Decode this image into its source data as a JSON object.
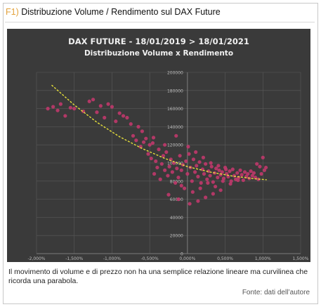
{
  "figure": {
    "label": "F1)",
    "title": "Distribuzione Volume / Rendimento sul DAX Future",
    "caption": "Il movimento di volume e di prezzo non ha una semplice relazione lineare ma curvilinea che ricorda una parabola.",
    "source": "Fonte: dati dell’autore"
  },
  "colors": {
    "plot_bg": "#3a3a3a",
    "point": "#c0396b",
    "trend": "#e8e13a",
    "grid": "#595959",
    "tick_text": "#bdbdbd",
    "title_text": "#f0f0f0",
    "label_accent": "#e2a13a"
  },
  "chart_data": {
    "type": "scatter",
    "title": "DAX FUTURE - 18/01/2019 > 18/01/2021",
    "subtitle": "Distribuzione Volume x Rendimento",
    "xlabel": "",
    "ylabel": "",
    "xlim": [
      -0.02,
      0.015
    ],
    "ylim": [
      0,
      200000
    ],
    "grid": true,
    "x_ticks": [
      -0.02,
      -0.015,
      -0.01,
      -0.005,
      0,
      0.005,
      0.01,
      0.015
    ],
    "x_tick_labels": [
      "-2,000%",
      "-1,500%",
      "-1,000%",
      "-0,500%",
      "0,000%",
      "0,500%",
      "1,000%",
      "1,500%"
    ],
    "y_ticks": [
      0,
      20000,
      40000,
      60000,
      80000,
      100000,
      120000,
      140000,
      160000,
      180000,
      200000
    ],
    "y_tick_labels": [
      "0",
      "20000",
      "40000",
      "60000",
      "80000",
      "100000",
      "120000",
      "140000",
      "160000",
      "180000",
      "200000"
    ],
    "trendline": {
      "type": "polynomial-2",
      "x": [
        -0.018,
        -0.015,
        -0.012,
        -0.009,
        -0.006,
        -0.003,
        0,
        0.003,
        0.006,
        0.009,
        0.0105
      ],
      "y": [
        186000,
        164000,
        145000,
        129000,
        116000,
        105000,
        96000,
        90000,
        85500,
        82500,
        81500
      ]
    },
    "series": [
      {
        "x": [
          -0.0185,
          -0.0178,
          -0.0172,
          -0.0168,
          -0.0162,
          -0.0155,
          -0.015,
          -0.0138,
          -0.013,
          -0.0125,
          -0.012,
          -0.0115,
          -0.011,
          -0.0105,
          -0.01,
          -0.0095,
          -0.009,
          -0.0085,
          -0.008,
          -0.0075,
          -0.0072,
          -0.0068,
          -0.0065,
          -0.0062,
          -0.0058,
          -0.0055,
          -0.0052,
          -0.005,
          -0.0048,
          -0.0046,
          -0.0044,
          -0.0042,
          -0.004,
          -0.0038,
          -0.0036,
          -0.0034,
          -0.0032,
          -0.003,
          -0.0028,
          -0.0026,
          -0.0024,
          -0.0022,
          -0.002,
          -0.0018,
          -0.0016,
          -0.0014,
          -0.0012,
          -0.001,
          -0.0008,
          -0.0006,
          -0.0004,
          -0.0002,
          0.0,
          0.0002,
          0.0004,
          0.0006,
          0.0008,
          0.001,
          0.0012,
          0.0014,
          0.0016,
          0.0018,
          0.002,
          0.0022,
          0.0024,
          0.0026,
          0.0028,
          0.003,
          0.0032,
          0.0034,
          0.0036,
          0.0038,
          0.004,
          0.0042,
          0.0044,
          0.0046,
          0.0048,
          0.005,
          0.0052,
          0.0054,
          0.0056,
          0.0058,
          0.006,
          0.0062,
          0.0064,
          0.0066,
          0.0068,
          0.007,
          0.0072,
          0.0074,
          0.0076,
          0.0078,
          0.008,
          0.0082,
          0.0084,
          0.0086,
          0.0088,
          0.009,
          0.0092,
          0.0094,
          0.0096,
          0.0098,
          0.01,
          0.0102,
          0.0104,
          -0.006,
          -0.0045,
          -0.003,
          -0.0015,
          0.0001,
          0.0011,
          0.0021,
          0.0031,
          0.0041,
          0.0051,
          -0.0025,
          -0.0012,
          0.0003,
          0.0014,
          0.0024,
          0.0034,
          0.0044,
          -0.0008,
          0.0007,
          0.0017,
          0.0027,
          0.0037,
          0.0047,
          0.0057,
          0.0067
        ],
        "y": [
          160000,
          162000,
          158000,
          165000,
          152000,
          161000,
          160000,
          157000,
          168000,
          170000,
          156000,
          163000,
          150000,
          165000,
          162000,
          146000,
          155000,
          152000,
          150000,
          143000,
          130000,
          125000,
          140000,
          118000,
          123000,
          127000,
          110000,
          120000,
          105000,
          122000,
          88000,
          102000,
          95000,
          115000,
          82000,
          99000,
          108000,
          92000,
          112000,
          86000,
          96000,
          104000,
          90000,
          100000,
          78000,
          94000,
          84000,
          108000,
          92000,
          98000,
          72000,
          102000,
          88000,
          110000,
          95000,
          80000,
          104000,
          90000,
          97000,
          85000,
          101000,
          78000,
          93000,
          88000,
          99000,
          82000,
          91000,
          86000,
          96000,
          79000,
          89000,
          94000,
          84000,
          92000,
          87000,
          90000,
          83000,
          95000,
          88000,
          85000,
          91000,
          80000,
          93000,
          86000,
          82000,
          89000,
          84000,
          92000,
          87000,
          81000,
          90000,
          85000,
          88000,
          83000,
          91000,
          86000,
          89000,
          84000,
          99000,
          82000,
          96000,
          88000,
          106000,
          92000,
          95000,
          135000,
          128000,
          120000,
          130000,
          118000,
          112000,
          106000,
          100000,
          97000,
          93000,
          65000,
          60000,
          55000,
          58000,
          62000,
          66000,
          70000,
          75000,
          68000,
          72000,
          78000,
          74000,
          80000,
          77000,
          81000
        ]
      }
    ]
  }
}
